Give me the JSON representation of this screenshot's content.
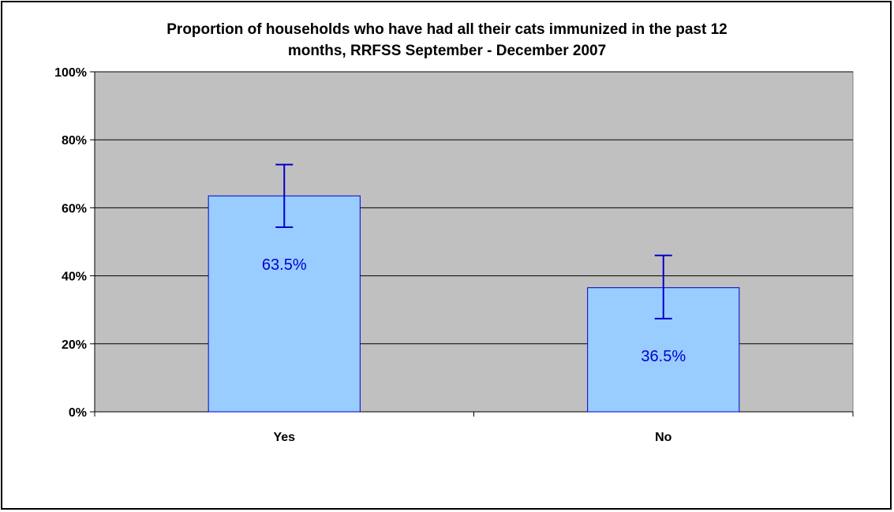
{
  "chart_data": {
    "type": "bar",
    "title_line1": "Proportion of households who have had all their cats immunized in the past 12",
    "title_line2": "months, RRFSS September - December 2007",
    "categories": [
      "Yes",
      "No"
    ],
    "values": [
      63.5,
      36.5
    ],
    "value_labels": [
      "63.5%",
      "36.5%"
    ],
    "error_bars": [
      {
        "low": 54.3,
        "high": 72.7
      },
      {
        "low": 27.4,
        "high": 46.0
      }
    ],
    "ylim": [
      0,
      100
    ],
    "yticks": [
      0,
      20,
      40,
      60,
      80,
      100
    ],
    "ytick_labels": [
      "0%",
      "20%",
      "40%",
      "60%",
      "80%",
      "100%"
    ],
    "xlabel": "",
    "ylabel": "",
    "grid": true,
    "legend": "none",
    "colors": {
      "plot_bg": "#c0c0c0",
      "bar_fill": "#99ccff",
      "bar_stroke": "#0000cc",
      "error_bar": "#0000cc",
      "value_label": "#0000cc",
      "gridline": "#000000"
    }
  }
}
